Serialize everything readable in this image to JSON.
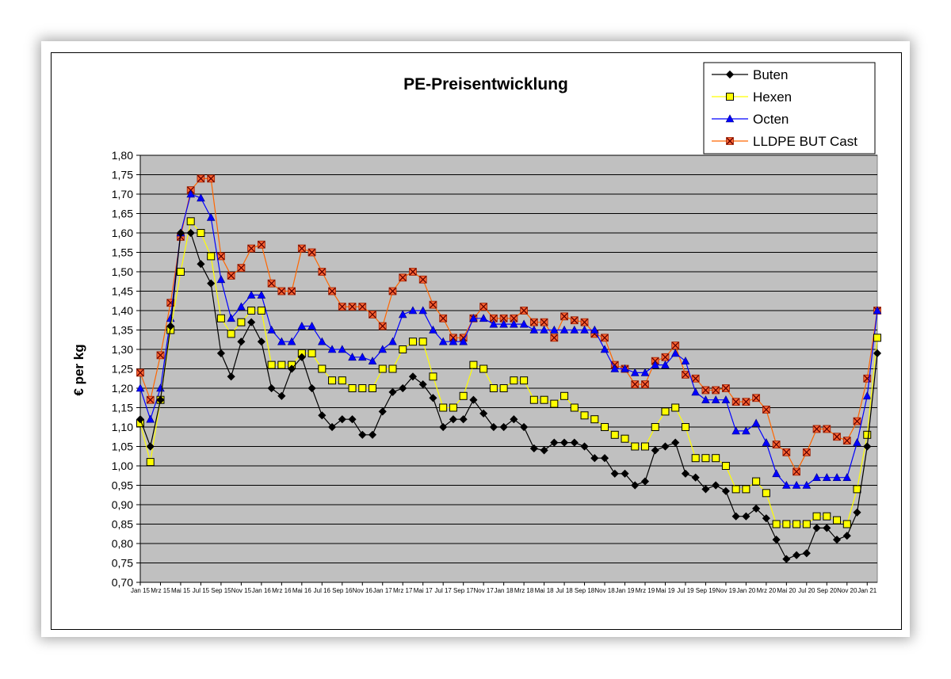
{
  "chart_data": {
    "type": "line",
    "title": "PE-Preisentwicklung",
    "xlabel": "",
    "ylabel": "€ per kg",
    "ylim": [
      0.7,
      1.8
    ],
    "ytick_step": 0.05,
    "grid": "horizontal",
    "plot_background": "#C0C0C0",
    "legend_position": "top-right",
    "x_tick_labels": [
      "Jan 15",
      "Mrz 15",
      "Mai 15",
      "Jul 15",
      "Sep 15",
      "Nov 15",
      "Jan 16",
      "Mrz 16",
      "Mai 16",
      "Jul 16",
      "Sep 16",
      "Nov 16",
      "Jan 17",
      "Mrz 17",
      "Mai 17",
      "Jul 17",
      "Sep 17",
      "Nov 17",
      "Jan 18",
      "Mrz 18",
      "Mai 18",
      "Jul 18",
      "Sep 18",
      "Nov 18",
      "Jan 19",
      "Mrz 19",
      "Mai 19",
      "Jul 19",
      "Sep 19",
      "Nov 19",
      "Jan 20",
      "Mrz 20",
      "Mai 20",
      "Jul 20",
      "Sep 20",
      "Nov 20",
      "Jan 21"
    ],
    "series": [
      {
        "name": "Buten",
        "color": "#000000",
        "marker": "diamond",
        "values": [
          1.12,
          1.05,
          1.17,
          1.36,
          1.6,
          1.6,
          1.52,
          1.47,
          1.29,
          1.23,
          1.32,
          1.37,
          1.32,
          1.2,
          1.18,
          1.25,
          1.28,
          1.2,
          1.13,
          1.1,
          1.12,
          1.12,
          1.08,
          1.08,
          1.14,
          1.19,
          1.2,
          1.23,
          1.21,
          1.175,
          1.1,
          1.12,
          1.12,
          1.17,
          1.135,
          1.1,
          1.1,
          1.12,
          1.1,
          1.045,
          1.04,
          1.06,
          1.06,
          1.06,
          1.05,
          1.02,
          1.02,
          0.98,
          0.98,
          0.95,
          0.96,
          1.04,
          1.05,
          1.06,
          0.98,
          0.97,
          0.94,
          0.95,
          0.935,
          0.87,
          0.87,
          0.89,
          0.865,
          0.81,
          0.76,
          0.77,
          0.775,
          0.84,
          0.84,
          0.81,
          0.82,
          0.88,
          1.05,
          1.29
        ]
      },
      {
        "name": "Hexen",
        "color": "#FFFF00",
        "marker": "square",
        "values": [
          1.11,
          1.01,
          1.17,
          1.35,
          1.5,
          1.63,
          1.6,
          1.54,
          1.38,
          1.34,
          1.37,
          1.4,
          1.4,
          1.26,
          1.26,
          1.26,
          1.29,
          1.29,
          1.25,
          1.22,
          1.22,
          1.2,
          1.2,
          1.2,
          1.25,
          1.25,
          1.3,
          1.32,
          1.32,
          1.23,
          1.15,
          1.15,
          1.18,
          1.26,
          1.25,
          1.2,
          1.2,
          1.22,
          1.22,
          1.17,
          1.17,
          1.16,
          1.18,
          1.15,
          1.13,
          1.12,
          1.1,
          1.08,
          1.07,
          1.05,
          1.05,
          1.1,
          1.14,
          1.15,
          1.1,
          1.02,
          1.02,
          1.02,
          1.0,
          0.94,
          0.94,
          0.96,
          0.93,
          0.85,
          0.85,
          0.85,
          0.85,
          0.87,
          0.87,
          0.86,
          0.85,
          0.94,
          1.08,
          1.33
        ]
      },
      {
        "name": "Octen",
        "color": "#0000FF",
        "marker": "triangle",
        "values": [
          1.2,
          1.12,
          1.2,
          1.38,
          1.6,
          1.7,
          1.69,
          1.64,
          1.48,
          1.38,
          1.41,
          1.44,
          1.44,
          1.35,
          1.32,
          1.32,
          1.36,
          1.36,
          1.32,
          1.3,
          1.3,
          1.28,
          1.28,
          1.27,
          1.3,
          1.32,
          1.39,
          1.4,
          1.4,
          1.35,
          1.32,
          1.32,
          1.32,
          1.38,
          1.38,
          1.365,
          1.365,
          1.365,
          1.365,
          1.35,
          1.35,
          1.35,
          1.35,
          1.35,
          1.35,
          1.35,
          1.3,
          1.25,
          1.25,
          1.24,
          1.24,
          1.26,
          1.26,
          1.29,
          1.27,
          1.19,
          1.17,
          1.17,
          1.17,
          1.09,
          1.09,
          1.11,
          1.06,
          0.98,
          0.95,
          0.95,
          0.95,
          0.97,
          0.97,
          0.97,
          0.97,
          1.06,
          1.18,
          1.4
        ]
      },
      {
        "name": "LLDPE BUT Cast",
        "color": "#FF6600",
        "marker": "x-square",
        "values": [
          1.24,
          1.17,
          1.285,
          1.42,
          1.59,
          1.71,
          1.74,
          1.74,
          1.54,
          1.49,
          1.51,
          1.56,
          1.57,
          1.47,
          1.45,
          1.45,
          1.56,
          1.55,
          1.5,
          1.45,
          1.41,
          1.41,
          1.41,
          1.39,
          1.36,
          1.45,
          1.485,
          1.5,
          1.48,
          1.415,
          1.38,
          1.33,
          1.33,
          1.38,
          1.41,
          1.38,
          1.38,
          1.38,
          1.4,
          1.37,
          1.37,
          1.33,
          1.385,
          1.375,
          1.37,
          1.34,
          1.33,
          1.26,
          1.25,
          1.21,
          1.21,
          1.27,
          1.28,
          1.31,
          1.235,
          1.225,
          1.195,
          1.195,
          1.2,
          1.165,
          1.165,
          1.175,
          1.145,
          1.055,
          1.035,
          0.985,
          1.035,
          1.095,
          1.095,
          1.075,
          1.065,
          1.115,
          1.225,
          1.4
        ]
      }
    ]
  }
}
